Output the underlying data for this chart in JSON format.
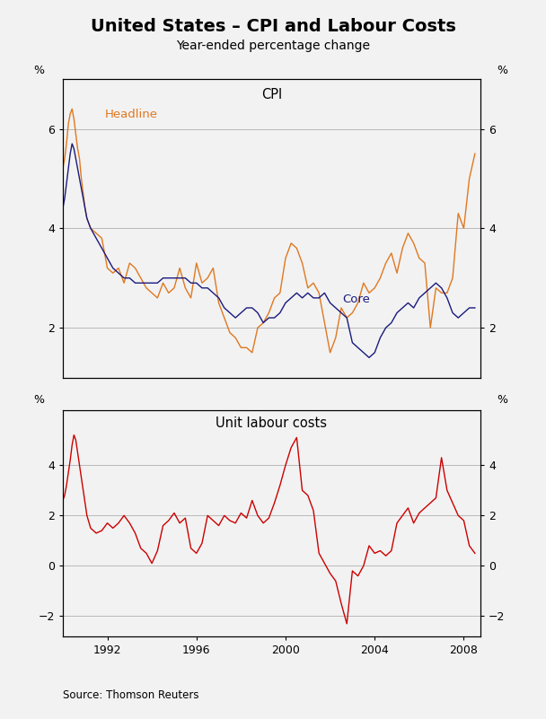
{
  "title": "United States – CPI and Labour Costs",
  "subtitle": "Year-ended percentage change",
  "panel1_title": "CPI",
  "panel2_title": "Unit labour costs",
  "source": "Source: Thomson Reuters",
  "bg_color": "#f2f2f2",
  "plot_bg": "#f2f2f2",
  "headline_color": "#e07820",
  "core_color": "#1a1a7e",
  "ulc_color": "#cc0000",
  "cpi_ylim": [
    1.0,
    7.0
  ],
  "cpi_yticks": [
    2,
    4,
    6
  ],
  "ulc_ylim": [
    -2.8,
    6.2
  ],
  "ulc_yticks": [
    -2,
    0,
    2,
    4
  ],
  "xlim_start": 1990.0,
  "xlim_end": 2008.75,
  "xtick_years": [
    1992,
    1996,
    2000,
    2004,
    2008
  ],
  "headline_x": [
    1990.0,
    1990.083,
    1990.167,
    1990.25,
    1990.333,
    1990.417,
    1990.5,
    1990.583,
    1990.667,
    1990.75,
    1990.833,
    1990.917,
    1991.0,
    1991.083,
    1991.25,
    1991.5,
    1991.75,
    1992.0,
    1992.25,
    1992.5,
    1992.75,
    1993.0,
    1993.25,
    1993.5,
    1993.75,
    1994.0,
    1994.25,
    1994.5,
    1994.75,
    1995.0,
    1995.25,
    1995.5,
    1995.75,
    1996.0,
    1996.25,
    1996.5,
    1996.75,
    1997.0,
    1997.25,
    1997.5,
    1997.75,
    1998.0,
    1998.25,
    1998.5,
    1998.75,
    1999.0,
    1999.25,
    1999.5,
    1999.75,
    2000.0,
    2000.25,
    2000.5,
    2000.75,
    2001.0,
    2001.25,
    2001.5,
    2001.75,
    2002.0,
    2002.25,
    2002.5,
    2002.75,
    2003.0,
    2003.25,
    2003.5,
    2003.75,
    2004.0,
    2004.25,
    2004.5,
    2004.75,
    2005.0,
    2005.25,
    2005.5,
    2005.75,
    2006.0,
    2006.25,
    2006.5,
    2006.75,
    2007.0,
    2007.25,
    2007.5,
    2007.75,
    2008.0,
    2008.25,
    2008.5
  ],
  "headline_y": [
    5.2,
    5.4,
    5.7,
    6.1,
    6.3,
    6.4,
    6.2,
    5.9,
    5.6,
    5.4,
    5.0,
    4.7,
    4.4,
    4.2,
    4.0,
    3.9,
    3.8,
    3.2,
    3.1,
    3.2,
    2.9,
    3.3,
    3.2,
    3.0,
    2.8,
    2.7,
    2.6,
    2.9,
    2.7,
    2.8,
    3.2,
    2.8,
    2.6,
    3.3,
    2.9,
    3.0,
    3.2,
    2.5,
    2.2,
    1.9,
    1.8,
    1.6,
    1.6,
    1.5,
    2.0,
    2.1,
    2.3,
    2.6,
    2.7,
    3.4,
    3.7,
    3.6,
    3.3,
    2.8,
    2.9,
    2.7,
    2.1,
    1.5,
    1.8,
    2.4,
    2.2,
    2.3,
    2.5,
    2.9,
    2.7,
    2.8,
    3.0,
    3.3,
    3.5,
    3.1,
    3.6,
    3.9,
    3.7,
    3.4,
    3.3,
    2.0,
    2.8,
    2.7,
    2.7,
    3.0,
    4.3,
    4.0,
    5.0,
    5.5
  ],
  "core_x": [
    1990.0,
    1990.083,
    1990.167,
    1990.25,
    1990.333,
    1990.417,
    1990.5,
    1990.583,
    1990.667,
    1990.75,
    1990.833,
    1990.917,
    1991.0,
    1991.083,
    1991.25,
    1991.5,
    1991.75,
    1992.0,
    1992.25,
    1992.5,
    1992.75,
    1993.0,
    1993.25,
    1993.5,
    1993.75,
    1994.0,
    1994.25,
    1994.5,
    1994.75,
    1995.0,
    1995.25,
    1995.5,
    1995.75,
    1996.0,
    1996.25,
    1996.5,
    1996.75,
    1997.0,
    1997.25,
    1997.5,
    1997.75,
    1998.0,
    1998.25,
    1998.5,
    1998.75,
    1999.0,
    1999.25,
    1999.5,
    1999.75,
    2000.0,
    2000.25,
    2000.5,
    2000.75,
    2001.0,
    2001.25,
    2001.5,
    2001.75,
    2002.0,
    2002.25,
    2002.5,
    2002.75,
    2003.0,
    2003.25,
    2003.5,
    2003.75,
    2004.0,
    2004.25,
    2004.5,
    2004.75,
    2005.0,
    2005.25,
    2005.5,
    2005.75,
    2006.0,
    2006.25,
    2006.5,
    2006.75,
    2007.0,
    2007.25,
    2007.5,
    2007.75,
    2008.0,
    2008.25,
    2008.5
  ],
  "core_y": [
    4.4,
    4.6,
    4.9,
    5.2,
    5.5,
    5.7,
    5.6,
    5.4,
    5.2,
    5.0,
    4.8,
    4.6,
    4.4,
    4.2,
    4.0,
    3.8,
    3.6,
    3.4,
    3.2,
    3.1,
    3.0,
    3.0,
    2.9,
    2.9,
    2.9,
    2.9,
    2.9,
    3.0,
    3.0,
    3.0,
    3.0,
    3.0,
    2.9,
    2.9,
    2.8,
    2.8,
    2.7,
    2.6,
    2.4,
    2.3,
    2.2,
    2.3,
    2.4,
    2.4,
    2.3,
    2.1,
    2.2,
    2.2,
    2.3,
    2.5,
    2.6,
    2.7,
    2.6,
    2.7,
    2.6,
    2.6,
    2.7,
    2.5,
    2.4,
    2.3,
    2.2,
    1.7,
    1.6,
    1.5,
    1.4,
    1.5,
    1.8,
    2.0,
    2.1,
    2.3,
    2.4,
    2.5,
    2.4,
    2.6,
    2.7,
    2.8,
    2.9,
    2.8,
    2.6,
    2.3,
    2.2,
    2.3,
    2.4,
    2.4
  ],
  "ulc_x": [
    1990.0,
    1990.083,
    1990.167,
    1990.25,
    1990.333,
    1990.417,
    1990.5,
    1990.583,
    1990.667,
    1990.75,
    1990.833,
    1990.917,
    1991.0,
    1991.083,
    1991.25,
    1991.5,
    1991.75,
    1992.0,
    1992.25,
    1992.5,
    1992.75,
    1993.0,
    1993.25,
    1993.5,
    1993.75,
    1994.0,
    1994.25,
    1994.5,
    1994.75,
    1995.0,
    1995.25,
    1995.5,
    1995.75,
    1996.0,
    1996.25,
    1996.5,
    1996.75,
    1997.0,
    1997.25,
    1997.5,
    1997.75,
    1998.0,
    1998.25,
    1998.5,
    1998.75,
    1999.0,
    1999.25,
    1999.5,
    1999.75,
    2000.0,
    2000.25,
    2000.5,
    2000.75,
    2001.0,
    2001.25,
    2001.5,
    2001.75,
    2002.0,
    2002.25,
    2002.5,
    2002.75,
    2003.0,
    2003.25,
    2003.5,
    2003.75,
    2004.0,
    2004.25,
    2004.5,
    2004.75,
    2005.0,
    2005.25,
    2005.5,
    2005.75,
    2006.0,
    2006.25,
    2006.5,
    2006.75,
    2007.0,
    2007.25,
    2007.5,
    2007.75,
    2008.0,
    2008.25,
    2008.5
  ],
  "ulc_y": [
    2.6,
    2.8,
    3.2,
    3.7,
    4.2,
    4.8,
    5.2,
    5.0,
    4.5,
    4.0,
    3.5,
    3.0,
    2.5,
    2.0,
    1.5,
    1.3,
    1.4,
    1.7,
    1.5,
    1.7,
    2.0,
    1.7,
    1.3,
    0.7,
    0.5,
    0.1,
    0.6,
    1.6,
    1.8,
    2.1,
    1.7,
    1.9,
    0.7,
    0.5,
    0.9,
    2.0,
    1.8,
    1.6,
    2.0,
    1.8,
    1.7,
    2.1,
    1.9,
    2.6,
    2.0,
    1.7,
    1.9,
    2.5,
    3.2,
    4.0,
    4.7,
    5.1,
    3.0,
    2.8,
    2.2,
    0.5,
    0.1,
    -0.3,
    -0.6,
    -1.5,
    -2.3,
    -0.2,
    -0.4,
    0.0,
    0.8,
    0.5,
    0.6,
    0.4,
    0.6,
    1.7,
    2.0,
    2.3,
    1.7,
    2.1,
    2.3,
    2.5,
    2.7,
    4.3,
    3.0,
    2.5,
    2.0,
    1.8,
    0.8,
    0.5
  ]
}
